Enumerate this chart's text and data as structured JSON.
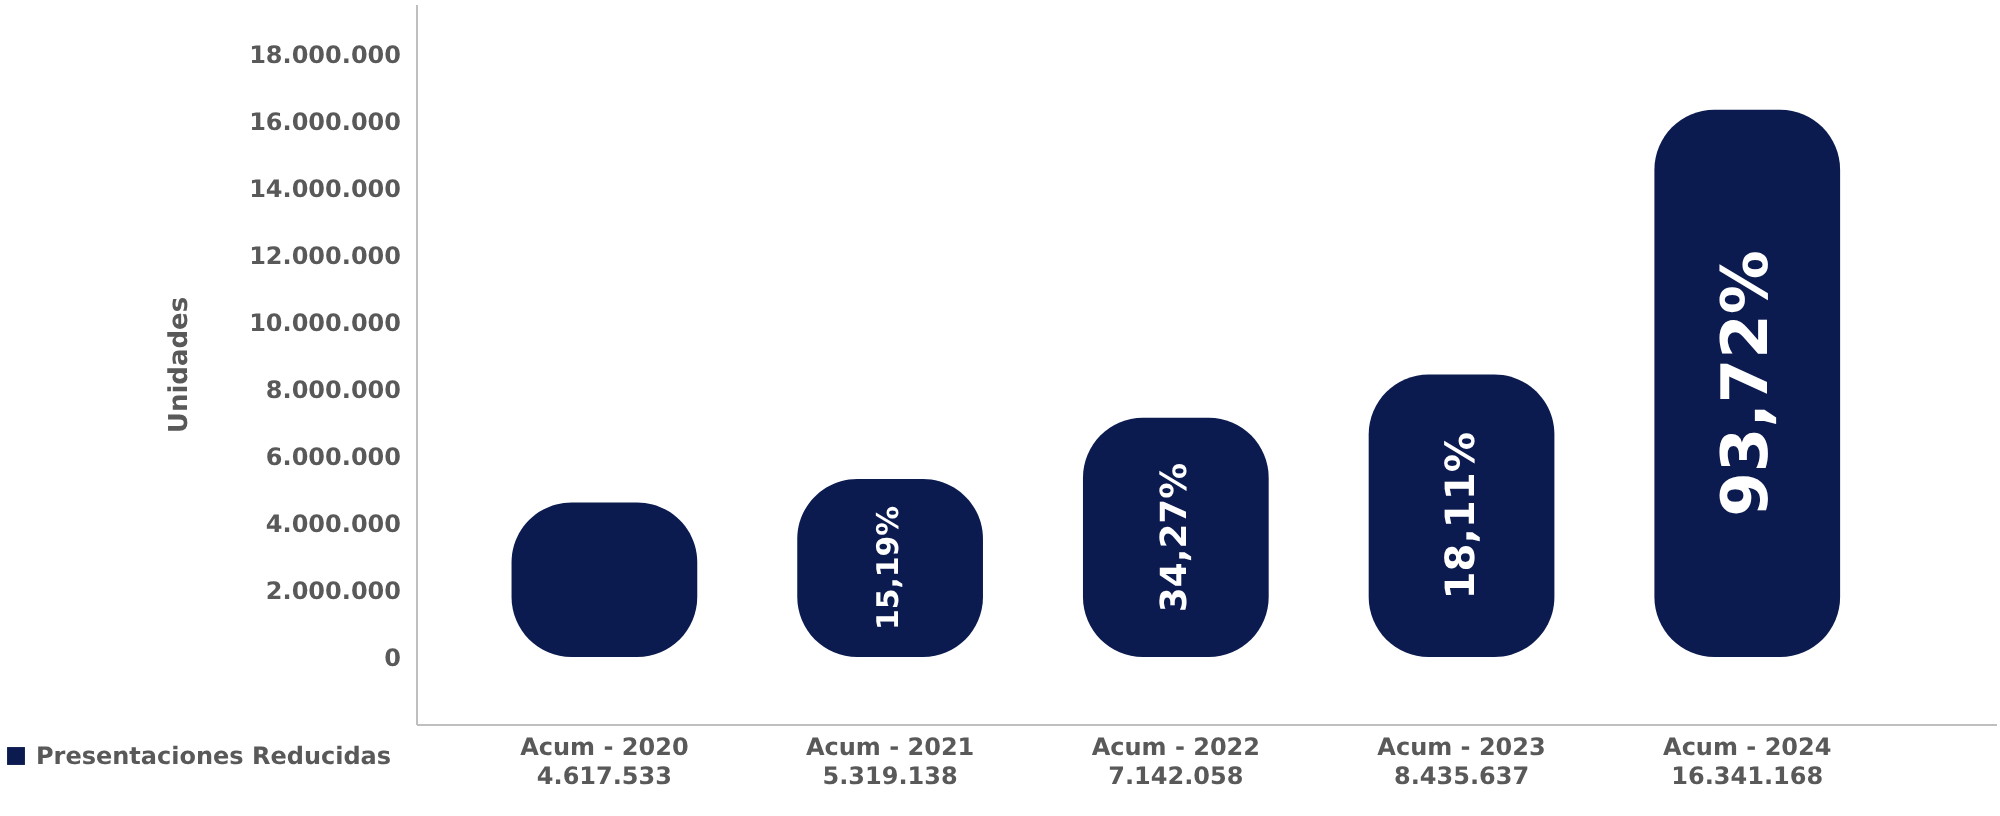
{
  "chart_data": {
    "type": "bar",
    "ylabel": "Unidades",
    "categories": [
      "Acum - 2020",
      "Acum - 2021",
      "Acum - 2022",
      "Acum - 2023",
      "Acum - 2024"
    ],
    "series": [
      {
        "name": "Presentaciones Reducidas",
        "color": "#0b1a4f",
        "values": [
          4617533,
          5319138,
          7142058,
          8435637,
          16341168
        ],
        "value_labels": [
          "4.617.533",
          "5.319.138",
          "7.142.058",
          "8.435.637",
          "16.341.168"
        ]
      }
    ],
    "ylim": [
      -2000000,
      19500000
    ],
    "yticks": [
      0,
      {
        "value": 2000000,
        "label": "2.000.000"
      },
      {
        "value": 4000000,
        "label": "4.000.000"
      },
      {
        "value": 6000000,
        "label": "6.000.000"
      },
      {
        "value": 8000000,
        "label": "8.000.000"
      },
      {
        "value": 10000000,
        "label": "10.000.000"
      },
      {
        "value": 12000000,
        "label": "12.000.000"
      },
      {
        "value": 14000000,
        "label": "14.000.000"
      },
      {
        "value": 16000000,
        "label": "16.000.000"
      },
      {
        "value": 18000000,
        "label": "18.000.000"
      }
    ],
    "annotations": [
      "15,19%",
      "34,27%",
      "18,11%",
      "93,72%"
    ],
    "legend": "bottom left",
    "grid": false
  }
}
